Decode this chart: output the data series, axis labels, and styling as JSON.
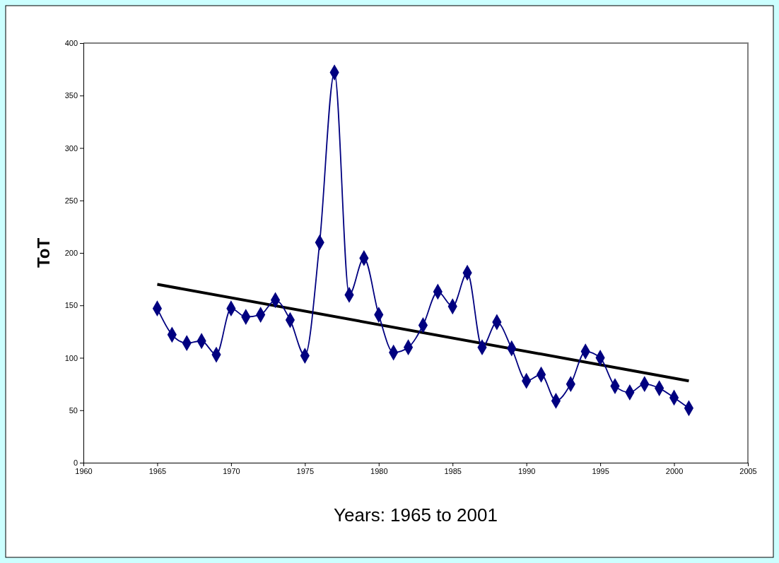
{
  "chart_data": {
    "type": "line",
    "xlabel": "Years: 1965 to 2001",
    "ylabel": "ToT",
    "x": [
      1965,
      1966,
      1967,
      1968,
      1969,
      1970,
      1971,
      1972,
      1973,
      1974,
      1975,
      1976,
      1977,
      1978,
      1979,
      1980,
      1981,
      1982,
      1983,
      1984,
      1985,
      1986,
      1987,
      1988,
      1989,
      1990,
      1991,
      1992,
      1993,
      1994,
      1995,
      1996,
      1997,
      1998,
      1999,
      2000,
      2001
    ],
    "marker": "diamond",
    "line_style": "solid",
    "xlim": [
      1960,
      2005
    ],
    "xticks": [
      1960,
      1965,
      1970,
      1975,
      1980,
      1985,
      1990,
      1995,
      2000,
      2005
    ],
    "ylim": [
      0,
      400
    ],
    "yticks": [
      0,
      50,
      100,
      150,
      200,
      250,
      300,
      350,
      400
    ],
    "series": [
      {
        "color": "#000080",
        "values": [
          147,
          122,
          114,
          116,
          103,
          147,
          139,
          141,
          155,
          136,
          102,
          210,
          372,
          160,
          195,
          141,
          105,
          110,
          131,
          163,
          149,
          181,
          110,
          134,
          109,
          78,
          84,
          59,
          75,
          106,
          100,
          73,
          67,
          75,
          71,
          62,
          52
        ]
      },
      {
        "type": "line",
        "color": "#000000",
        "marker": "none",
        "x": [
          1965,
          2001
        ],
        "values": [
          170,
          78
        ]
      }
    ]
  }
}
